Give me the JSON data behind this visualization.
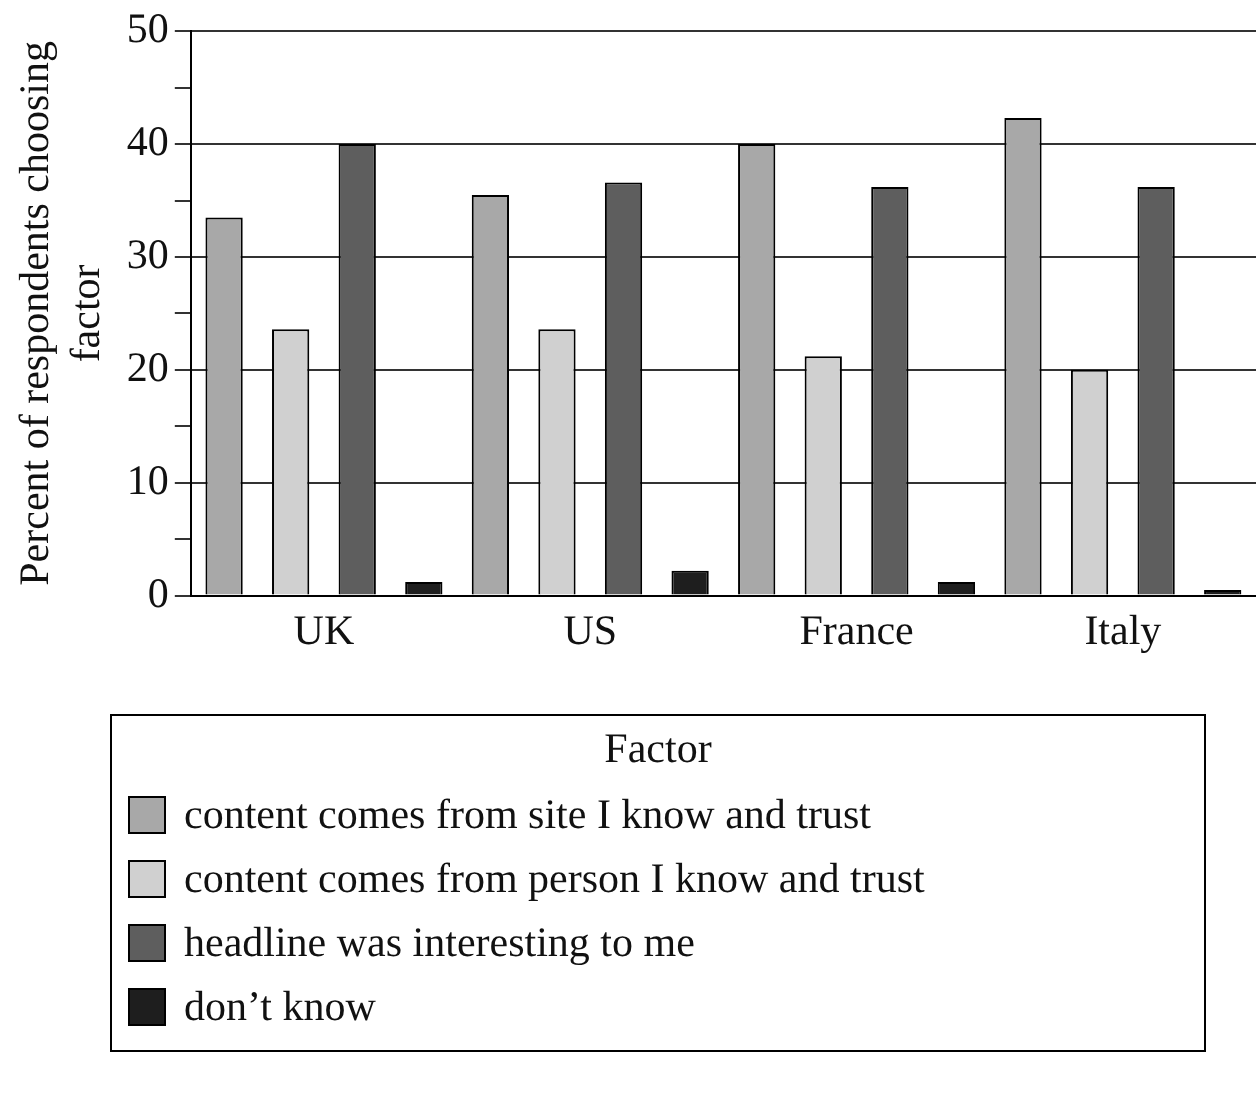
{
  "chart_data": {
    "type": "bar",
    "ylabel": "Percent of respondents choosing factor",
    "legend_title": "Factor",
    "categories": [
      "UK",
      "US",
      "France",
      "Italy"
    ],
    "series": [
      {
        "name": "content comes from site I know and trust",
        "color": "#a8a8a8",
        "values": [
          33.5,
          35.5,
          40,
          42.3
        ]
      },
      {
        "name": "content comes from person I know and trust",
        "color": "#d0d0d0",
        "values": [
          23.6,
          23.6,
          21.2,
          20
        ]
      },
      {
        "name": "headline was interesting to me",
        "color": "#5e5e5e",
        "values": [
          40,
          36.6,
          36.2,
          36.2
        ]
      },
      {
        "name": "don’t know",
        "color": "#1e1e1e",
        "values": [
          1.2,
          2.2,
          1.2,
          0.5
        ]
      }
    ],
    "ylim": [
      0,
      50
    ],
    "yticks": [
      0,
      {
        "value": 5,
        "label": null
      },
      10,
      {
        "value": 15,
        "label": null
      },
      20,
      {
        "value": 25,
        "label": null
      },
      30,
      {
        "value": 35,
        "label": null
      },
      40,
      {
        "value": 45,
        "label": null
      },
      50
    ],
    "grid": "y",
    "legend": "bottom"
  }
}
